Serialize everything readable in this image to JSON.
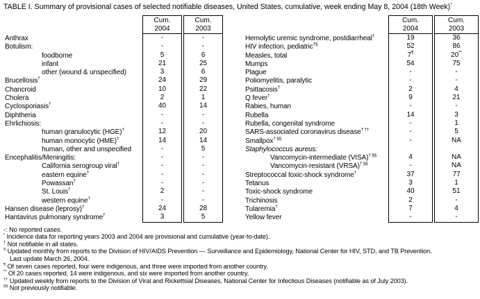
{
  "title": {
    "text": "TABLE I. Summary of provisional cases of selected notifiable diseases, United States, cumulative, week ending May 8, 2004 (18th Week)",
    "sup": "*"
  },
  "column_headers": {
    "cum": "Cum.",
    "year_2004": "2004",
    "year_2003": "2003"
  },
  "left_table": {
    "rows": [
      {
        "label": "Anthrax",
        "v2004": "-",
        "v2003": "-"
      },
      {
        "label": "Botulism:",
        "v2004": "-",
        "v2003": "-"
      },
      {
        "label": "foodborne",
        "indent": 1,
        "v2004": "5",
        "v2003": "6"
      },
      {
        "label": "infant",
        "indent": 1,
        "v2004": "21",
        "v2003": "25"
      },
      {
        "label": "other (wound & unspecified)",
        "indent": 1,
        "v2004": "3",
        "v2003": "6"
      },
      {
        "label": "Brucellosis",
        "sup": "†",
        "v2004": "24",
        "v2003": "29"
      },
      {
        "label": "Chancroid",
        "v2004": "10",
        "v2003": "22"
      },
      {
        "label": "Cholera",
        "v2004": "2",
        "v2003": "1"
      },
      {
        "label": "Cyclosporiasis",
        "sup": "†",
        "v2004": "40",
        "v2003": "14"
      },
      {
        "label": "Diphtheria",
        "v2004": "-",
        "v2003": "-"
      },
      {
        "label": "Ehrlichiosis:",
        "v2004": "-",
        "v2003": "-"
      },
      {
        "label": "human granulocytic (HGE)",
        "sup": "†",
        "indent": 1,
        "v2004": "12",
        "v2003": "20"
      },
      {
        "label": "human monocytic (HME)",
        "sup": "†",
        "indent": 1,
        "v2004": "14",
        "v2003": "14"
      },
      {
        "label": "human, other and unspecified",
        "indent": 1,
        "v2004": "-",
        "v2003": "5"
      },
      {
        "label": "Encephalitis/Meningitis:",
        "v2004": "-",
        "v2003": "-"
      },
      {
        "label": "California serogroup viral",
        "sup": "†",
        "indent": 1,
        "v2004": "-",
        "v2003": "-"
      },
      {
        "label": "eastern equine",
        "sup": "†",
        "indent": 1,
        "v2004": "-",
        "v2003": "-"
      },
      {
        "label": "Powassan",
        "sup": "†",
        "indent": 1,
        "v2004": "-",
        "v2003": "-"
      },
      {
        "label": "St. Louis",
        "sup": "†",
        "indent": 1,
        "v2004": "2",
        "v2003": "-"
      },
      {
        "label": "western equine",
        "sup": "†",
        "indent": 1,
        "v2004": "-",
        "v2003": "-"
      },
      {
        "label": "Hansen disease (leprosy)",
        "sup": "†",
        "v2004": "24",
        "v2003": "28"
      },
      {
        "label": "Hantavirus pulmonary syndrome",
        "sup": "†",
        "v2004": "3",
        "v2003": "5"
      }
    ]
  },
  "right_table": {
    "rows": [
      {
        "label": "Hemolytic uremic syndrome, postdiarrheal",
        "sup": "†",
        "v2004": "19",
        "v2003": "36"
      },
      {
        "label": "HIV infection, pediatric",
        "sup": "†§",
        "v2004": "52",
        "v2003": "86"
      },
      {
        "label": "Measles, total",
        "v2004": "7",
        "v2004_sup": "¶",
        "v2003": "20",
        "v2003_sup": "**"
      },
      {
        "label": "Mumps",
        "v2004": "54",
        "v2003": "75"
      },
      {
        "label": "Plague",
        "v2004": "-",
        "v2003": "-"
      },
      {
        "label": "Poliomyelitis, paralytic",
        "v2004": "-",
        "v2003": "-"
      },
      {
        "label": "Psittacosis",
        "sup": "†",
        "v2004": "2",
        "v2003": "4"
      },
      {
        "label": "Q fever",
        "sup": "†",
        "v2004": "9",
        "v2003": "21"
      },
      {
        "label": "Rabies, human",
        "v2004": "-",
        "v2003": "-"
      },
      {
        "label": "Rubella",
        "v2004": "14",
        "v2003": "3"
      },
      {
        "label": "Rubella, congenital syndrome",
        "v2004": "-",
        "v2003": "1"
      },
      {
        "label": "SARS-associated coronavirus disease",
        "sup": "† ††",
        "v2004": "-",
        "v2003": "5"
      },
      {
        "label": "Smallpox",
        "sup": "† §§",
        "v2004": "-",
        "v2003": "NA"
      },
      {
        "label": "Staphylococcus aureus:",
        "italic": true,
        "v2004": "",
        "v2003": ""
      },
      {
        "label": "Vancomycin-intermediate (VISA)",
        "sup": "† §§",
        "indent": 1,
        "v2004": "4",
        "v2003": "NA"
      },
      {
        "label": "Vancomycin-resistant (VRSA)",
        "sup": "† §§",
        "indent": 1,
        "v2004": "-",
        "v2003": "NA"
      },
      {
        "label": "Streptococcal toxic-shock syndrome",
        "sup": "†",
        "v2004": "37",
        "v2003": "77"
      },
      {
        "label": "Tetanus",
        "v2004": "3",
        "v2003": "1"
      },
      {
        "label": "Toxic-shock syndrome",
        "v2004": "40",
        "v2003": "51"
      },
      {
        "label": "Trichinosis",
        "v2004": "2",
        "v2003": "-"
      },
      {
        "label": "Tularemia",
        "sup": "†",
        "v2004": "7",
        "v2003": "4"
      },
      {
        "label": "Yellow fever",
        "v2004": "-",
        "v2003": "-"
      }
    ]
  },
  "footnotes": [
    {
      "marker": "-:",
      "sup": false,
      "text": "No reported cases."
    },
    {
      "marker": "*",
      "sup": true,
      "text": "Incidence data for reporting years 2003 and 2004 are provisional and cumulative (year-to-date)."
    },
    {
      "marker": "†",
      "sup": true,
      "text": "Not notifiable in all states."
    },
    {
      "marker": "§",
      "sup": true,
      "text": "Updated monthly from reports to the Division of HIV/AIDS Prevention — Surveillance and Epidemiology, National Center for HIV, STD, and TB Prevention."
    },
    {
      "marker": "",
      "sup": false,
      "cont": true,
      "text": "Last update March 26, 2004."
    },
    {
      "marker": "¶",
      "sup": true,
      "text": "Of seven cases reported, four were indigenous, and three were imported from another country."
    },
    {
      "marker": "**",
      "sup": true,
      "text": "Of 20 cases reported, 14 were indigenous, and six were imported from another country."
    },
    {
      "marker": "††",
      "sup": true,
      "text": "Updated weekly from reports to the Division of Viral and Rickettsial Diseases, National Center for Infectious Diseases (notifiable as of July 2003)."
    },
    {
      "marker": "§§",
      "sup": true,
      "text": "Not previously notifiable."
    }
  ]
}
